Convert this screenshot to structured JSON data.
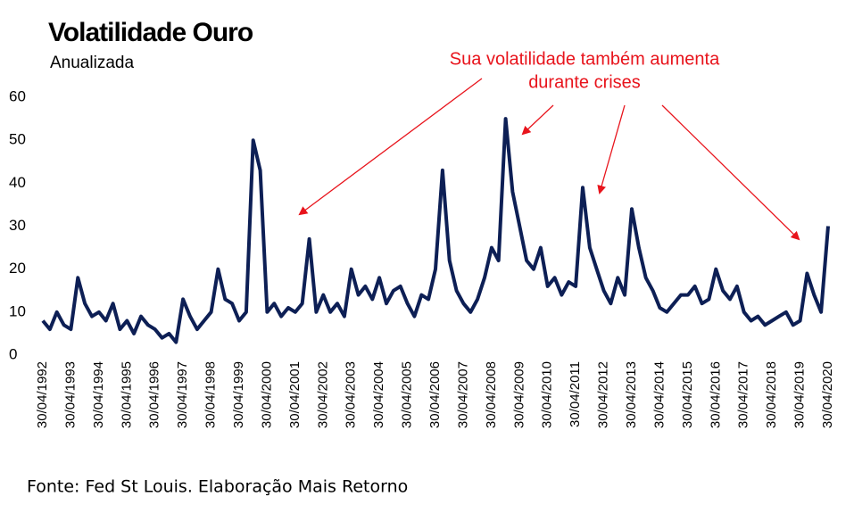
{
  "chart_data": {
    "type": "line",
    "title": "Volatilidade Ouro",
    "subtitle": "Anualizada",
    "annotation": [
      "Sua volatilidade também aumenta",
      "durante crises"
    ],
    "source": "Fonte: Fed St Louis. Elaboração Mais Retorno",
    "categories": [
      "30/04/1992",
      null,
      null,
      null,
      "30/04/1993",
      null,
      null,
      null,
      "30/04/1994",
      null,
      null,
      null,
      "30/04/1995",
      null,
      null,
      null,
      "30/04/1996",
      null,
      null,
      null,
      "30/04/1997",
      null,
      null,
      null,
      "30/04/1998",
      null,
      null,
      null,
      "30/04/1999",
      null,
      null,
      null,
      "30/04/2000",
      null,
      null,
      null,
      "30/04/2001",
      null,
      null,
      null,
      "30/04/2002",
      null,
      null,
      null,
      "30/04/2003",
      null,
      null,
      null,
      "30/04/2004",
      null,
      null,
      null,
      "30/04/2005",
      null,
      null,
      null,
      "30/04/2006",
      null,
      null,
      null,
      "30/04/2007",
      null,
      null,
      null,
      "30/04/2008",
      null,
      null,
      null,
      "30/04/2009",
      null,
      null,
      null,
      "30/04/2010",
      null,
      null,
      null,
      "30/04/2011",
      null,
      null,
      null,
      "30/04/2012",
      null,
      null,
      null,
      "30/04/2013",
      null,
      null,
      null,
      "30/04/2014",
      null,
      null,
      null,
      "30/04/2015",
      null,
      null,
      null,
      "30/04/2016",
      null,
      null,
      null,
      "30/04/2017",
      null,
      null,
      null,
      "30/04/2018",
      null,
      null,
      null,
      "30/04/2019",
      null,
      null,
      null,
      "30/04/2020"
    ],
    "values": [
      8,
      6,
      10,
      7,
      6,
      18,
      12,
      9,
      10,
      8,
      12,
      6,
      8,
      5,
      9,
      7,
      6,
      4,
      5,
      3,
      13,
      9,
      6,
      8,
      10,
      20,
      13,
      12,
      8,
      10,
      50,
      43,
      10,
      12,
      9,
      11,
      10,
      12,
      27,
      10,
      14,
      10,
      12,
      9,
      20,
      14,
      16,
      13,
      18,
      12,
      15,
      16,
      12,
      9,
      14,
      13,
      20,
      43,
      22,
      15,
      12,
      10,
      13,
      18,
      25,
      22,
      55,
      38,
      30,
      22,
      20,
      25,
      16,
      18,
      14,
      17,
      16,
      39,
      25,
      20,
      15,
      12,
      18,
      14,
      34,
      25,
      18,
      15,
      11,
      10,
      12,
      14,
      14,
      16,
      12,
      13,
      20,
      15,
      13,
      16,
      10,
      8,
      9,
      7,
      8,
      9,
      10,
      7,
      8,
      19,
      14,
      10,
      30
    ],
    "color": "#0d1f55",
    "ylim": [
      0,
      60
    ],
    "yticks": [
      0,
      10,
      20,
      30,
      40,
      50,
      60
    ],
    "grid": false
  }
}
